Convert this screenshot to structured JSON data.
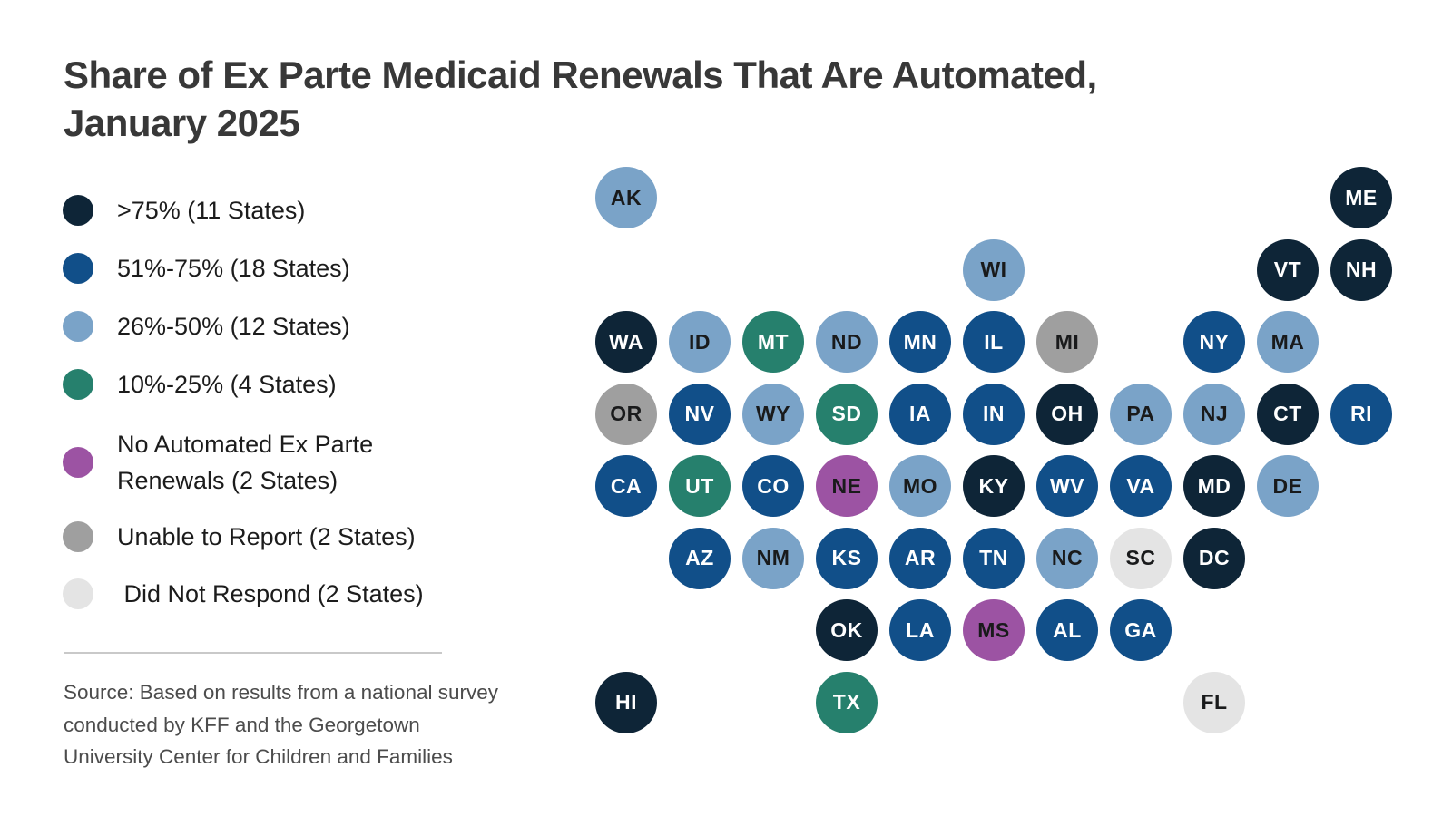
{
  "header": {
    "line1": "Share of Ex Parte Medicaid Renewals That Are Automated,",
    "line2": "January 2025"
  },
  "source": {
    "text": "Source: Based on results from a national survey conducted by KFF and the Georgetown University Center for Children and Families"
  },
  "chart_data": {
    "type": "tile_map",
    "title": "Share of Ex Parte Medicaid Renewals That Are Automated, January 2025",
    "legend_position": "left",
    "legend": [
      {
        "key": "gt75",
        "label": ">75% (11 States)",
        "color": "#0e2537",
        "text_color": "#ffffff",
        "count": 11
      },
      {
        "key": "51_75",
        "label": "51%-75% (18 States)",
        "color": "#114f89",
        "text_color": "#ffffff",
        "count": 18
      },
      {
        "key": "26_50",
        "label": "26%-50% (12 States)",
        "color": "#7aa3c8",
        "text_color": "#191a1b",
        "count": 12
      },
      {
        "key": "10_25",
        "label": "10%-25% (4 States)",
        "color": "#26806d",
        "text_color": "#ffffff",
        "count": 4
      },
      {
        "key": "none",
        "label": "No Automated Ex Parte\nRenewals (2 States)",
        "color": "#9c53a3",
        "text_color": "#191a1b",
        "count": 2
      },
      {
        "key": "unable",
        "label": "Unable to Report (2 States)",
        "color": "#9f9f9f",
        "text_color": "#191a1b",
        "count": 2
      },
      {
        "key": "no_response",
        "label": " Did Not Respond (2 States)",
        "color": "#e4e4e4",
        "text_color": "#191a1b",
        "count": 2
      }
    ],
    "states": [
      {
        "abbr": "AK",
        "row": 0,
        "col": 0,
        "category": "26_50"
      },
      {
        "abbr": "ME",
        "row": 0,
        "col": 10,
        "category": "gt75"
      },
      {
        "abbr": "WI",
        "row": 1,
        "col": 5,
        "category": "26_50"
      },
      {
        "abbr": "VT",
        "row": 1,
        "col": 9,
        "category": "gt75"
      },
      {
        "abbr": "NH",
        "row": 1,
        "col": 10,
        "category": "gt75"
      },
      {
        "abbr": "WA",
        "row": 2,
        "col": 0,
        "category": "gt75"
      },
      {
        "abbr": "ID",
        "row": 2,
        "col": 1,
        "category": "26_50"
      },
      {
        "abbr": "MT",
        "row": 2,
        "col": 2,
        "category": "10_25"
      },
      {
        "abbr": "ND",
        "row": 2,
        "col": 3,
        "category": "26_50"
      },
      {
        "abbr": "MN",
        "row": 2,
        "col": 4,
        "category": "51_75"
      },
      {
        "abbr": "IL",
        "row": 2,
        "col": 5,
        "category": "51_75"
      },
      {
        "abbr": "MI",
        "row": 2,
        "col": 6,
        "category": "unable"
      },
      {
        "abbr": "NY",
        "row": 2,
        "col": 8,
        "category": "51_75"
      },
      {
        "abbr": "MA",
        "row": 2,
        "col": 9,
        "category": "26_50"
      },
      {
        "abbr": "OR",
        "row": 3,
        "col": 0,
        "category": "unable"
      },
      {
        "abbr": "NV",
        "row": 3,
        "col": 1,
        "category": "51_75"
      },
      {
        "abbr": "WY",
        "row": 3,
        "col": 2,
        "category": "26_50"
      },
      {
        "abbr": "SD",
        "row": 3,
        "col": 3,
        "category": "10_25"
      },
      {
        "abbr": "IA",
        "row": 3,
        "col": 4,
        "category": "51_75"
      },
      {
        "abbr": "IN",
        "row": 3,
        "col": 5,
        "category": "51_75"
      },
      {
        "abbr": "OH",
        "row": 3,
        "col": 6,
        "category": "gt75"
      },
      {
        "abbr": "PA",
        "row": 3,
        "col": 7,
        "category": "26_50"
      },
      {
        "abbr": "NJ",
        "row": 3,
        "col": 8,
        "category": "26_50"
      },
      {
        "abbr": "CT",
        "row": 3,
        "col": 9,
        "category": "gt75"
      },
      {
        "abbr": "RI",
        "row": 3,
        "col": 10,
        "category": "51_75"
      },
      {
        "abbr": "CA",
        "row": 4,
        "col": 0,
        "category": "51_75"
      },
      {
        "abbr": "UT",
        "row": 4,
        "col": 1,
        "category": "10_25"
      },
      {
        "abbr": "CO",
        "row": 4,
        "col": 2,
        "category": "51_75"
      },
      {
        "abbr": "NE",
        "row": 4,
        "col": 3,
        "category": "none"
      },
      {
        "abbr": "MO",
        "row": 4,
        "col": 4,
        "category": "26_50"
      },
      {
        "abbr": "KY",
        "row": 4,
        "col": 5,
        "category": "gt75"
      },
      {
        "abbr": "WV",
        "row": 4,
        "col": 6,
        "category": "51_75"
      },
      {
        "abbr": "VA",
        "row": 4,
        "col": 7,
        "category": "51_75"
      },
      {
        "abbr": "MD",
        "row": 4,
        "col": 8,
        "category": "gt75"
      },
      {
        "abbr": "DE",
        "row": 4,
        "col": 9,
        "category": "26_50"
      },
      {
        "abbr": "AZ",
        "row": 5,
        "col": 1,
        "category": "51_75"
      },
      {
        "abbr": "NM",
        "row": 5,
        "col": 2,
        "category": "26_50"
      },
      {
        "abbr": "KS",
        "row": 5,
        "col": 3,
        "category": "51_75"
      },
      {
        "abbr": "AR",
        "row": 5,
        "col": 4,
        "category": "51_75"
      },
      {
        "abbr": "TN",
        "row": 5,
        "col": 5,
        "category": "51_75"
      },
      {
        "abbr": "NC",
        "row": 5,
        "col": 6,
        "category": "26_50"
      },
      {
        "abbr": "SC",
        "row": 5,
        "col": 7,
        "category": "no_response"
      },
      {
        "abbr": "DC",
        "row": 5,
        "col": 8,
        "category": "gt75"
      },
      {
        "abbr": "OK",
        "row": 6,
        "col": 3,
        "category": "gt75"
      },
      {
        "abbr": "LA",
        "row": 6,
        "col": 4,
        "category": "51_75"
      },
      {
        "abbr": "MS",
        "row": 6,
        "col": 5,
        "category": "none"
      },
      {
        "abbr": "AL",
        "row": 6,
        "col": 6,
        "category": "51_75"
      },
      {
        "abbr": "GA",
        "row": 6,
        "col": 7,
        "category": "51_75"
      },
      {
        "abbr": "HI",
        "row": 7,
        "col": 0,
        "category": "gt75"
      },
      {
        "abbr": "TX",
        "row": 7,
        "col": 3,
        "category": "10_25"
      },
      {
        "abbr": "FL",
        "row": 7,
        "col": 8,
        "category": "no_response"
      }
    ]
  }
}
